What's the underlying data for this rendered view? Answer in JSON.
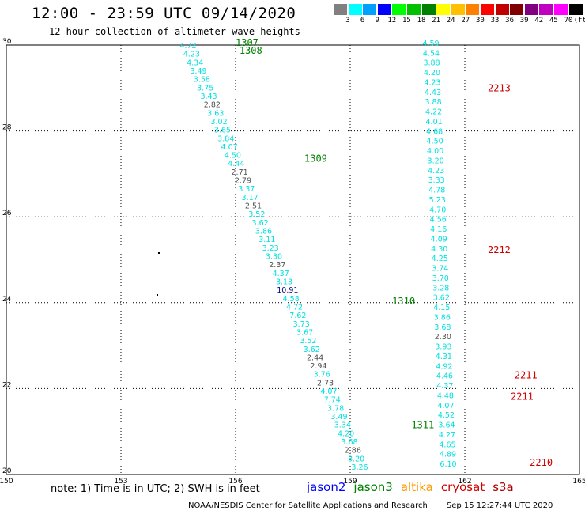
{
  "title": "12:00 - 23:59 UTC 09/14/2020",
  "subtitle": "12 hour collection of altimeter wave heights",
  "legend": {
    "unit": "(ft)",
    "bins": [
      {
        "label": "3",
        "color": "#808080"
      },
      {
        "label": "6",
        "color": "#00ffff"
      },
      {
        "label": "9",
        "color": "#00a0ff"
      },
      {
        "label": "12",
        "color": "#0000ff"
      },
      {
        "label": "15",
        "color": "#00ff00"
      },
      {
        "label": "18",
        "color": "#00c000"
      },
      {
        "label": "21",
        "color": "#008000"
      },
      {
        "label": "24",
        "color": "#ffff00"
      },
      {
        "label": "27",
        "color": "#ffc000"
      },
      {
        "label": "30",
        "color": "#ff8000"
      },
      {
        "label": "33",
        "color": "#ff0000"
      },
      {
        "label": "36",
        "color": "#c00000"
      },
      {
        "label": "39",
        "color": "#800000"
      },
      {
        "label": "42",
        "color": "#800080"
      },
      {
        "label": "45",
        "color": "#c000c0"
      },
      {
        "label": "70",
        "color": "#ff00ff"
      },
      {
        "label": "",
        "color": "#000000"
      }
    ]
  },
  "axes": {
    "lat_ticks": [
      "30",
      "28",
      "26",
      "24",
      "22",
      "20"
    ],
    "lon_ticks": [
      "150",
      "153",
      "156",
      "159",
      "162",
      "165"
    ]
  },
  "colors": {
    "cyan": "#00e0e0",
    "gray": "#505050",
    "navy": "#00007a",
    "green": "#008000",
    "red": "#d00000"
  },
  "track_west": [
    {
      "v": "4.72",
      "c": "cyan"
    },
    {
      "v": "4.23",
      "c": "cyan"
    },
    {
      "v": "4.34",
      "c": "cyan"
    },
    {
      "v": "3.49",
      "c": "cyan"
    },
    {
      "v": "3.58",
      "c": "cyan"
    },
    {
      "v": "3.75",
      "c": "cyan"
    },
    {
      "v": "3.43",
      "c": "cyan"
    },
    {
      "v": "2.82",
      "c": "gray"
    },
    {
      "v": "3.63",
      "c": "cyan"
    },
    {
      "v": "3.02",
      "c": "cyan"
    },
    {
      "v": "3.65",
      "c": "cyan"
    },
    {
      "v": "3.84",
      "c": "cyan"
    },
    {
      "v": "4.07",
      "c": "cyan"
    },
    {
      "v": "4.50",
      "c": "cyan"
    },
    {
      "v": "4.44",
      "c": "cyan"
    },
    {
      "v": "2.71",
      "c": "gray"
    },
    {
      "v": "2.79",
      "c": "gray"
    },
    {
      "v": "3.37",
      "c": "cyan"
    },
    {
      "v": "3.17",
      "c": "cyan"
    },
    {
      "v": "2.51",
      "c": "gray"
    },
    {
      "v": "3.52",
      "c": "cyan"
    },
    {
      "v": "3.62",
      "c": "cyan"
    },
    {
      "v": "3.86",
      "c": "cyan"
    },
    {
      "v": "3.11",
      "c": "cyan"
    },
    {
      "v": "3.23",
      "c": "cyan"
    },
    {
      "v": "3.30",
      "c": "cyan"
    },
    {
      "v": "2.37",
      "c": "gray"
    },
    {
      "v": "4.37",
      "c": "cyan"
    },
    {
      "v": "3.13",
      "c": "cyan"
    },
    {
      "v": "10.91",
      "c": "navy"
    },
    {
      "v": "4.58",
      "c": "cyan"
    },
    {
      "v": "4.72",
      "c": "cyan"
    },
    {
      "v": "7.62",
      "c": "cyan"
    },
    {
      "v": "3.73",
      "c": "cyan"
    },
    {
      "v": "3.67",
      "c": "cyan"
    },
    {
      "v": "3.52",
      "c": "cyan"
    },
    {
      "v": "3.62",
      "c": "cyan"
    },
    {
      "v": "2.44",
      "c": "gray"
    },
    {
      "v": "2.94",
      "c": "gray"
    },
    {
      "v": "3.76",
      "c": "cyan"
    },
    {
      "v": "2.73",
      "c": "gray"
    },
    {
      "v": "4.07",
      "c": "cyan"
    },
    {
      "v": "7.74",
      "c": "cyan"
    },
    {
      "v": "3.78",
      "c": "cyan"
    },
    {
      "v": "3.49",
      "c": "cyan"
    },
    {
      "v": "3.34",
      "c": "cyan"
    },
    {
      "v": "4.20",
      "c": "cyan"
    },
    {
      "v": "3.68",
      "c": "cyan"
    },
    {
      "v": "2.86",
      "c": "gray"
    },
    {
      "v": "3.20",
      "c": "cyan"
    },
    {
      "v": "3.26",
      "c": "cyan"
    }
  ],
  "track_east": [
    {
      "v": "4.59",
      "c": "cyan"
    },
    {
      "v": "4.54",
      "c": "cyan"
    },
    {
      "v": "3.88",
      "c": "cyan"
    },
    {
      "v": "4.20",
      "c": "cyan"
    },
    {
      "v": "4.23",
      "c": "cyan"
    },
    {
      "v": "4.43",
      "c": "cyan"
    },
    {
      "v": "3.88",
      "c": "cyan"
    },
    {
      "v": "4.22",
      "c": "cyan"
    },
    {
      "v": "4.01",
      "c": "cyan"
    },
    {
      "v": "4.68",
      "c": "cyan"
    },
    {
      "v": "4.50",
      "c": "cyan"
    },
    {
      "v": "4.00",
      "c": "cyan"
    },
    {
      "v": "3.20",
      "c": "cyan"
    },
    {
      "v": "4.23",
      "c": "cyan"
    },
    {
      "v": "3.33",
      "c": "cyan"
    },
    {
      "v": "4.78",
      "c": "cyan"
    },
    {
      "v": "5.23",
      "c": "cyan"
    },
    {
      "v": "4.70",
      "c": "cyan"
    },
    {
      "v": "4.56",
      "c": "cyan"
    },
    {
      "v": "4.16",
      "c": "cyan"
    },
    {
      "v": "4.09",
      "c": "cyan"
    },
    {
      "v": "4.30",
      "c": "cyan"
    },
    {
      "v": "4.25",
      "c": "cyan"
    },
    {
      "v": "3.74",
      "c": "cyan"
    },
    {
      "v": "3.70",
      "c": "cyan"
    },
    {
      "v": "3.28",
      "c": "cyan"
    },
    {
      "v": "3.62",
      "c": "cyan"
    },
    {
      "v": "4.15",
      "c": "cyan"
    },
    {
      "v": "3.86",
      "c": "cyan"
    },
    {
      "v": "3.68",
      "c": "cyan"
    },
    {
      "v": "2.30",
      "c": "gray"
    },
    {
      "v": "3.93",
      "c": "cyan"
    },
    {
      "v": "4.31",
      "c": "cyan"
    },
    {
      "v": "4.92",
      "c": "cyan"
    },
    {
      "v": "4.46",
      "c": "cyan"
    },
    {
      "v": "4.37",
      "c": "cyan"
    },
    {
      "v": "4.48",
      "c": "cyan"
    },
    {
      "v": "4.07",
      "c": "cyan"
    },
    {
      "v": "4.52",
      "c": "cyan"
    },
    {
      "v": "3.64",
      "c": "cyan"
    },
    {
      "v": "4.27",
      "c": "cyan"
    },
    {
      "v": "4.65",
      "c": "cyan"
    },
    {
      "v": "4.89",
      "c": "cyan"
    },
    {
      "v": "6.10",
      "c": "cyan"
    }
  ],
  "time_labels": [
    {
      "t": "1307",
      "c": "green",
      "lat": 29.98,
      "lon": 156.0
    },
    {
      "t": "1308",
      "c": "green",
      "lat": 29.8,
      "lon": 156.1
    },
    {
      "t": "1309",
      "c": "green",
      "lat": 27.28,
      "lon": 157.8
    },
    {
      "t": "1310",
      "c": "green",
      "lat": 23.96,
      "lon": 160.1
    },
    {
      "t": "1311",
      "c": "green",
      "lat": 21.08,
      "lon": 160.6
    },
    {
      "t": "2213",
      "c": "red",
      "lat": 28.92,
      "lon": 162.6
    },
    {
      "t": "2212",
      "c": "red",
      "lat": 25.16,
      "lon": 162.6
    },
    {
      "t": "2211",
      "c": "red",
      "lat": 22.24,
      "lon": 163.3
    },
    {
      "t": "2211",
      "c": "red",
      "lat": 21.74,
      "lon": 163.2
    },
    {
      "t": "2210",
      "c": "red",
      "lat": 20.2,
      "lon": 163.7
    }
  ],
  "note": "note: 1) Time is in UTC; 2) SWH is in feet",
  "satellites": [
    {
      "name": "jason2",
      "color": "#0000ff"
    },
    {
      "name": "jason3",
      "color": "#008000"
    },
    {
      "name": "altika",
      "color": "#ff9900"
    },
    {
      "name": "cryosat",
      "color": "#d00000"
    },
    {
      "name": "s3a",
      "color": "#b00000"
    }
  ],
  "footer": {
    "agency": "NOAA/NESDIS Center for Satellite Applications and Research",
    "timestamp": "Sep 15 12:27:44 UTC 2020"
  }
}
